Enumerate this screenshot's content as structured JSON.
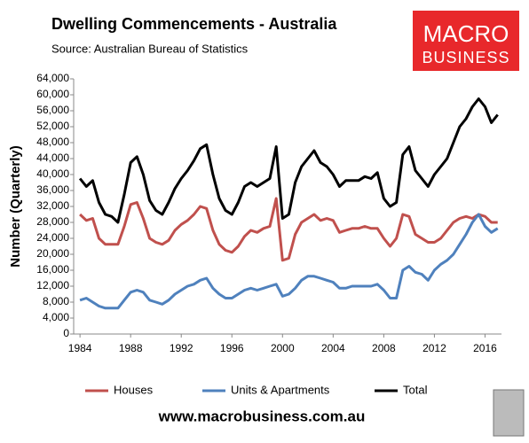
{
  "chart_data": {
    "type": "line",
    "title": "Dwelling Commencements - Australia",
    "subtitle": "Source: Australian Bureau of Statistics",
    "logo": [
      "MACRO",
      "BUSINESS"
    ],
    "footer": "www.macrobusiness.com.au",
    "y_label": "Number (Quarterly)",
    "x": [
      1984,
      1984.5,
      1985,
      1985.5,
      1986,
      1986.5,
      1987,
      1987.5,
      1988,
      1988.5,
      1989,
      1989.5,
      1990,
      1990.5,
      1991,
      1991.5,
      1992,
      1992.5,
      1993,
      1993.5,
      1994,
      1994.5,
      1995,
      1995.5,
      1996,
      1996.5,
      1997,
      1997.5,
      1998,
      1998.5,
      1999,
      1999.5,
      2000,
      2000.5,
      2001,
      2001.5,
      2002,
      2002.5,
      2003,
      2003.5,
      2004,
      2004.5,
      2005,
      2005.5,
      2006,
      2006.5,
      2007,
      2007.5,
      2008,
      2008.5,
      2009,
      2009.5,
      2010,
      2010.5,
      2011,
      2011.5,
      2012,
      2012.5,
      2013,
      2013.5,
      2014,
      2014.5,
      2015,
      2015.5,
      2016,
      2016.5,
      2017
    ],
    "series": [
      {
        "name": "Houses",
        "color": "#c0504d",
        "values": [
          30000,
          28500,
          29000,
          24000,
          22500,
          22500,
          22500,
          27000,
          32500,
          33000,
          29000,
          24000,
          23000,
          22500,
          23500,
          26000,
          27500,
          28500,
          30000,
          32000,
          31500,
          26000,
          22500,
          21000,
          20500,
          22000,
          24500,
          26000,
          25500,
          26500,
          27000,
          34000,
          18500,
          19000,
          25000,
          28000,
          29000,
          30000,
          28500,
          29000,
          28500,
          25500,
          26000,
          26500,
          26500,
          27000,
          26500,
          26500,
          24000,
          22000,
          24000,
          30000,
          29500,
          25000,
          24000,
          23000,
          23000,
          24000,
          26000,
          28000,
          29000,
          29500,
          29000,
          30000,
          29500,
          28000,
          28000
        ]
      },
      {
        "name": "Units & Apartments",
        "color": "#4f81bd",
        "values": [
          8500,
          9000,
          8000,
          7000,
          6500,
          6500,
          6500,
          8500,
          10500,
          11000,
          10500,
          8500,
          8000,
          7500,
          8500,
          10000,
          11000,
          12000,
          12500,
          13500,
          14000,
          11500,
          10000,
          9000,
          9000,
          10000,
          11000,
          11500,
          11000,
          11500,
          12000,
          12500,
          9500,
          10000,
          11500,
          13500,
          14500,
          14500,
          14000,
          13500,
          13000,
          11500,
          11500,
          12000,
          12000,
          12000,
          12000,
          12500,
          11000,
          9000,
          9000,
          16000,
          17000,
          15500,
          15000,
          13500,
          16000,
          17500,
          18500,
          20000,
          22500,
          25000,
          28000,
          30000,
          27000,
          25500,
          26500
        ]
      },
      {
        "name": "Total",
        "color": "#000000",
        "values": [
          39000,
          37000,
          38500,
          33000,
          30000,
          29500,
          28000,
          35000,
          43000,
          44500,
          40000,
          33500,
          31000,
          30000,
          33000,
          36500,
          39000,
          41000,
          43500,
          46500,
          47500,
          40000,
          34000,
          31000,
          30000,
          33000,
          37000,
          38000,
          37000,
          38000,
          39000,
          47000,
          29000,
          30000,
          38000,
          42000,
          44000,
          46000,
          43000,
          42000,
          40000,
          37000,
          38500,
          38500,
          38500,
          39500,
          39000,
          40500,
          34000,
          32000,
          33000,
          45000,
          47000,
          41000,
          39000,
          37000,
          40000,
          42000,
          44000,
          48000,
          52000,
          54000,
          57000,
          59000,
          57000,
          53000,
          55000
        ]
      }
    ],
    "xlim": [
      1983.5,
      2017.3
    ],
    "xticks": [
      1984,
      1988,
      1992,
      1996,
      2000,
      2004,
      2008,
      2012,
      2016
    ],
    "ylim": [
      0,
      64000
    ],
    "yticks": [
      0,
      {
        "value": 4000,
        "label": "4,000"
      },
      {
        "value": 8000,
        "label": "8,000"
      },
      {
        "value": 12000,
        "label": "12,000"
      },
      {
        "value": 16000,
        "label": "16,000"
      },
      {
        "value": 20000,
        "label": "20,000"
      },
      {
        "value": 24000,
        "label": "24,000"
      },
      {
        "value": 28000,
        "label": "28,000"
      },
      {
        "value": 32000,
        "label": "32,000"
      },
      {
        "value": 36000,
        "label": "36,000"
      },
      {
        "value": 40000,
        "label": "40,000"
      },
      {
        "value": 44000,
        "label": "44,000"
      },
      {
        "value": 48000,
        "label": "48,000"
      },
      {
        "value": 52000,
        "label": "52,000"
      },
      {
        "value": 56000,
        "label": "56,000"
      },
      {
        "value": 60000,
        "label": "60,000"
      },
      {
        "value": 64000,
        "label": "64,000"
      }
    ],
    "grid": false
  }
}
